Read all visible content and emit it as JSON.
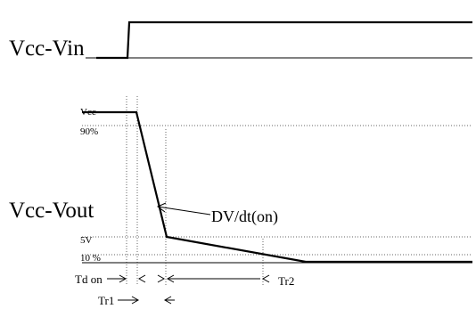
{
  "labels": {
    "vcc_vin": "Vcc-Vin",
    "vcc_vout": "Vcc-Vout",
    "vcc": "Vcc",
    "pct90": "90%",
    "v5": "5V",
    "pct10": "10 %",
    "dvdt": "DV/dt(on)",
    "td_on": "Td on",
    "tr1": "Tr1",
    "tr2": "Tr2"
  }
}
